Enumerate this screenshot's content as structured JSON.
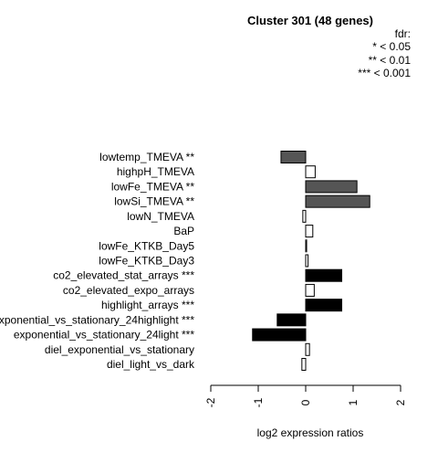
{
  "chart_data": {
    "type": "bar",
    "orientation": "horizontal",
    "title": "Cluster 301 (48 genes)",
    "xlabel": "log2 expression ratios",
    "ylabel": "",
    "xlim": [
      -2,
      2
    ],
    "xticks": [
      "-2",
      "-1",
      "0",
      "1",
      "2"
    ],
    "legend": {
      "title": "fdr:",
      "entries": [
        "* < 0.05",
        "** < 0.01",
        "*** < 0.001"
      ],
      "position": "top-right"
    },
    "colors": {
      "significant": "#555555",
      "highly_significant": "#000000",
      "not_significant": "#ffffff"
    },
    "categories": [
      {
        "label": "lowtemp_TMEVA **",
        "value": -0.52,
        "fill": "#555555"
      },
      {
        "label": "highpH_TMEVA",
        "value": 0.2,
        "fill": "#ffffff"
      },
      {
        "label": "lowFe_TMEVA **",
        "value": 1.08,
        "fill": "#555555"
      },
      {
        "label": "lowSi_TMEVA **",
        "value": 1.35,
        "fill": "#555555"
      },
      {
        "label": "lowN_TMEVA",
        "value": -0.06,
        "fill": "#ffffff"
      },
      {
        "label": "BaP",
        "value": 0.15,
        "fill": "#ffffff"
      },
      {
        "label": "lowFe_KTKB_Day5",
        "value": 0.02,
        "fill": "#ffffff"
      },
      {
        "label": "lowFe_KTKB_Day3",
        "value": 0.05,
        "fill": "#ffffff"
      },
      {
        "label": "co2_elevated_stat_arrays ***",
        "value": 0.76,
        "fill": "#000000"
      },
      {
        "label": "co2_elevated_expo_arrays",
        "value": 0.18,
        "fill": "#ffffff"
      },
      {
        "label": "highlight_arrays ***",
        "value": 0.76,
        "fill": "#000000"
      },
      {
        "label": "exponential_vs_stationary_24highlight ***",
        "value": -0.6,
        "fill": "#000000"
      },
      {
        "label": "exponential_vs_stationary_24light ***",
        "value": -1.12,
        "fill": "#000000"
      },
      {
        "label": "diel_exponential_vs_stationary",
        "value": 0.08,
        "fill": "#ffffff"
      },
      {
        "label": "diel_light_vs_dark",
        "value": -0.08,
        "fill": "#ffffff"
      }
    ]
  }
}
